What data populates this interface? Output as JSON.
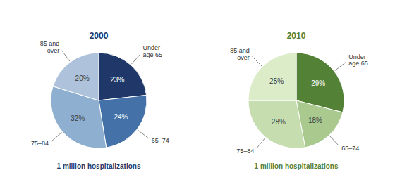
{
  "chart_data": [
    {
      "type": "pie",
      "title": "2000",
      "subtitle": "1 million hospitalizations",
      "categories": [
        "Under\nage 65",
        "65–74",
        "75–84",
        "85 and\nover"
      ],
      "values": [
        23,
        24,
        32,
        20
      ],
      "value_labels": [
        "23%",
        "24%",
        "32%",
        "20%"
      ],
      "colors": [
        "#1f3869",
        "#4472a8",
        "#8fafd0",
        "#aec3db"
      ],
      "data_labels": true
    },
    {
      "type": "pie",
      "title": "2010",
      "subtitle": "1 million hospitalizations",
      "categories": [
        "Under\nage 65",
        "65–74",
        "75–84",
        "85 and\nover"
      ],
      "values": [
        29,
        18,
        28,
        25
      ],
      "value_labels": [
        "29%",
        "18%",
        "28%",
        "25%"
      ],
      "colors": [
        "#538135",
        "#a9c98e",
        "#c6ddb0",
        "#ddecc8"
      ],
      "data_labels": true
    }
  ]
}
